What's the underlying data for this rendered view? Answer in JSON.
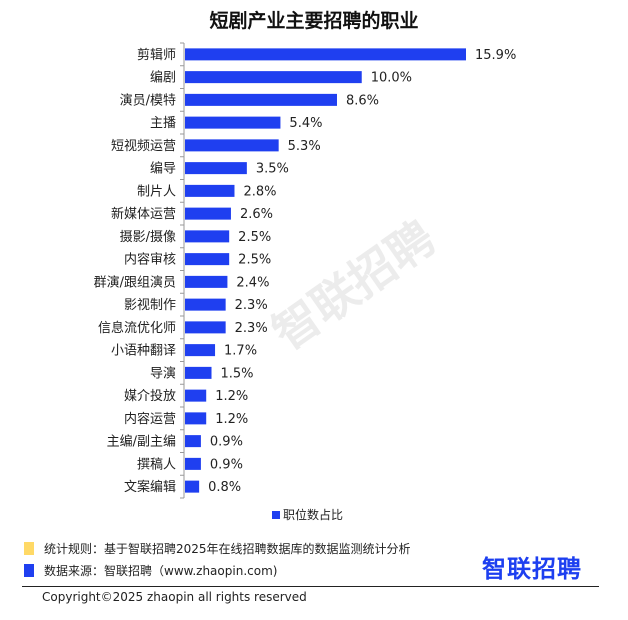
{
  "chart_data": {
    "type": "bar",
    "orientation": "horizontal",
    "title": "短剧产业主要招聘的职业",
    "categories": [
      "剪辑师",
      "编剧",
      "演员/模特",
      "主播",
      "短视频运营",
      "编导",
      "制片人",
      "新媒体运营",
      "摄影/摄像",
      "内容审核",
      "群演/跟组演员",
      "影视制作",
      "信息流优化师",
      "小语种翻译",
      "导演",
      "媒介投放",
      "内容运营",
      "主编/副主编",
      "撰稿人",
      "文案编辑"
    ],
    "values": [
      15.9,
      10.0,
      8.6,
      5.4,
      5.3,
      3.5,
      2.8,
      2.6,
      2.5,
      2.5,
      2.4,
      2.3,
      2.3,
      1.7,
      1.5,
      1.2,
      1.2,
      0.9,
      0.9,
      0.8
    ],
    "value_labels": [
      "15.9%",
      "10.0%",
      "8.6%",
      "5.4%",
      "5.3%",
      "3.5%",
      "2.8%",
      "2.6%",
      "2.5%",
      "2.5%",
      "2.4%",
      "2.3%",
      "2.3%",
      "1.7%",
      "1.5%",
      "1.2%",
      "1.2%",
      "0.9%",
      "0.9%",
      "0.8%"
    ],
    "series_name": "职位数占比",
    "legend_position": "bottom",
    "xlim": [
      0,
      16
    ],
    "color": "#1f3ff0"
  },
  "footer": {
    "rule_note": "统计规则：基于智联招聘2025年在线招聘数据库的数据监测统计分析",
    "source_note": "数据来源：智联招聘（www.zhaopin.com)",
    "copyright": "Copyright©2025 zhaopin all rights reserved",
    "logo": "智联招聘",
    "watermark": "智联招聘",
    "rule_color": "#ffd966",
    "source_color": "#1f3ff0"
  }
}
